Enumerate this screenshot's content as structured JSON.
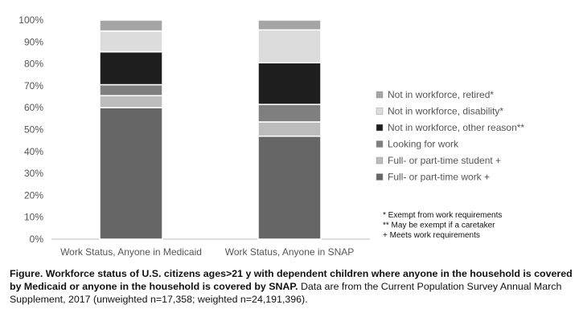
{
  "chart_data": {
    "type": "bar",
    "stacked": true,
    "categories": [
      "Work Status, Anyone in Medicaid",
      "Work Status, Anyone in SNAP"
    ],
    "series": [
      {
        "name": "Full- or part-time work +",
        "color": "#666666",
        "values": [
          60,
          47
        ]
      },
      {
        "name": "Full- or part-time student +",
        "color": "#bcbcbc",
        "values": [
          5.5,
          6.5
        ]
      },
      {
        "name": "Looking for work",
        "color": "#7f7f7f",
        "values": [
          5,
          8
        ]
      },
      {
        "name": "Not in workforce, other reason**",
        "color": "#1e1e1e",
        "values": [
          15,
          19
        ]
      },
      {
        "name": "Not in workforce, disability*",
        "color": "#dcdcdc",
        "values": [
          9.5,
          15
        ]
      },
      {
        "name": "Not in workforce, retired*",
        "color": "#a5a5a5",
        "values": [
          5,
          4.5
        ]
      }
    ],
    "ylim": [
      0,
      100
    ],
    "yticks": [
      "0%",
      "10%",
      "20%",
      "30%",
      "40%",
      "50%",
      "60%",
      "70%",
      "80%",
      "90%",
      "100%"
    ],
    "legend_position": "right",
    "notes": [
      "* Exempt from work requirements",
      "** May be exempt if a caretaker",
      "+ Meets work requirements"
    ]
  },
  "caption": {
    "bold": "Figure. Workforce status of U.S. citizens ages>21 y with dependent children where anyone in the household is covered by Medicaid or anyone in the household is covered by SNAP.",
    "rest": " Data are from the Current Population Survey Annual March Supplement, 2017 (unweighted n=17,358; weighted n=24,191,396)."
  }
}
